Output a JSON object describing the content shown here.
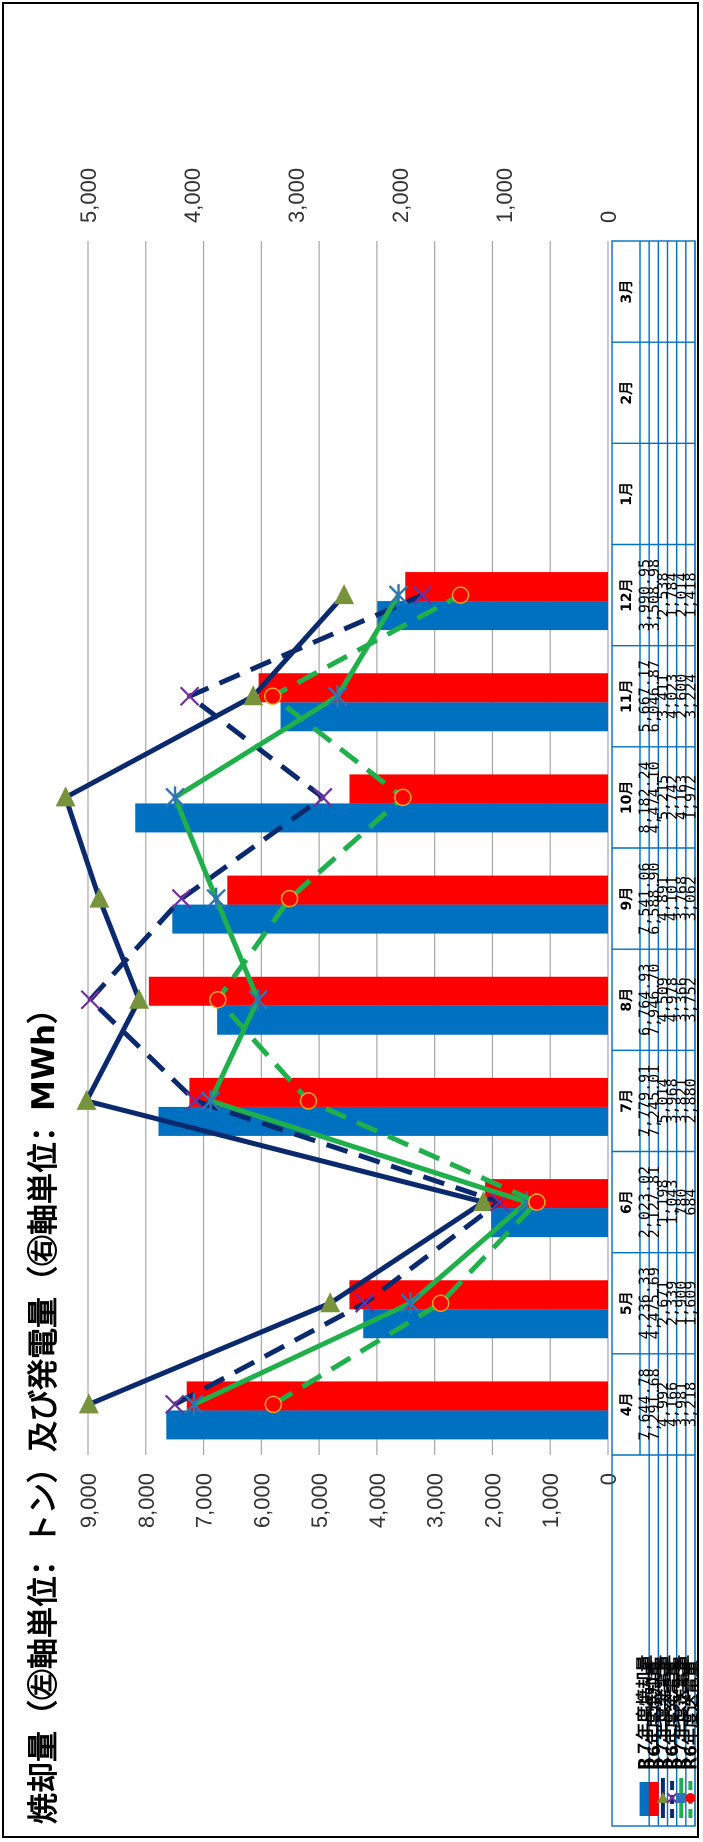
{
  "chart_data": {
    "type": "bar",
    "title": "焼却量（㊧軸単位：トン）及び発電量（㊨軸単位：MWh）",
    "categories": [
      "4月",
      "5月",
      "6月",
      "7月",
      "8月",
      "9月",
      "10月",
      "11月",
      "12月",
      "1月",
      "2月",
      "3月"
    ],
    "y_left": {
      "min": 0,
      "max": 9000,
      "ticks": [
        "0",
        "1,000",
        "2,000",
        "3,000",
        "4,000",
        "5,000",
        "6,000",
        "7,000",
        "8,000",
        "9,000"
      ]
    },
    "y_right": {
      "min": 0,
      "max": 5000,
      "ticks": [
        "0",
        "1,000",
        "2,000",
        "3,000",
        "4,000",
        "5,000"
      ]
    },
    "grid": true,
    "series": [
      {
        "name": "R７年度焼却量",
        "kind": "bar",
        "axis": "left",
        "color": "#0070C0",
        "values": [
          7644.78,
          4236.33,
          2023.02,
          7779.91,
          6764.93,
          7541.06,
          8182.24,
          5667.17,
          3990.95,
          null,
          null,
          null
        ],
        "labels": [
          "7,644.78",
          "4,236.33",
          "2,023.02",
          "7,779.91",
          "6,764.93",
          "7,541.06",
          "8,182.24",
          "5,667.17",
          "3,990.95",
          "",
          "",
          ""
        ]
      },
      {
        "name": "R6年度焼却量",
        "kind": "bar",
        "axis": "left",
        "color": "#FF0000",
        "values": [
          7291.68,
          4475.69,
          2127.81,
          7245.01,
          7946.7,
          6588.9,
          4474.1,
          6046.87,
          3508.98,
          null,
          null,
          null
        ],
        "labels": [
          "7,291.68",
          "4,475.69",
          "2,127.81",
          "7,245.01",
          "7,946.70",
          "6,588.90",
          "4,474.10",
          "6,046.87",
          "3,508.98",
          "",
          "",
          ""
        ]
      },
      {
        "name": "R７年度発電量",
        "kind": "line",
        "axis": "right",
        "color": "#0B2A6E",
        "dash": "solid",
        "marker": "triangle",
        "marker_color": "#77933C",
        "values": [
          4992,
          2671,
          1198,
          5014,
          4509,
          4891,
          5215,
          3411,
          2538,
          null,
          null,
          null
        ],
        "labels": [
          "4,992",
          "2,671",
          "1,198",
          "5,014",
          "4,509",
          "4,891",
          "5,215",
          "3,411",
          "2,538",
          "",
          "",
          ""
        ]
      },
      {
        "name": "R6年度発電量",
        "kind": "line",
        "axis": "right",
        "color": "#0B2A6E",
        "dash": "dashed",
        "marker": "x",
        "marker_color": "#7030A0",
        "values": [
          4166,
          2339,
          1043,
          3968,
          4978,
          4101,
          2742,
          4023,
          1784,
          null,
          null,
          null
        ],
        "labels": [
          "4,166",
          "2,339",
          "1,043",
          "3,968",
          "4,978",
          "4,101",
          "2,742",
          "4,023",
          "1,784",
          "",
          "",
          ""
        ]
      },
      {
        "name": "R７年度送電量",
        "kind": "line",
        "axis": "right",
        "color": "#1FAF4B",
        "dash": "solid",
        "marker": "star",
        "marker_color": "#2E75B6",
        "values": [
          3981,
          1900,
          780,
          3821,
          3366,
          3768,
          4163,
          2600,
          2014,
          null,
          null,
          null
        ],
        "labels": [
          "3,981",
          "1,900",
          "780",
          "3,821",
          "3,366",
          "3,768",
          "4,163",
          "2,600",
          "2,014",
          "",
          "",
          ""
        ]
      },
      {
        "name": "R6年度送電量",
        "kind": "line",
        "axis": "right",
        "color": "#1FAF4B",
        "dash": "dashed",
        "marker": "circle",
        "marker_color": "#FF0000",
        "values": [
          3218,
          1609,
          684,
          2880,
          3752,
          3062,
          1972,
          3224,
          1418,
          null,
          null,
          null
        ],
        "labels": [
          "3,218",
          "1,609",
          "684",
          "2,880",
          "3,752",
          "3,062",
          "1,972",
          "3,224",
          "1,418",
          "",
          "",
          ""
        ]
      }
    ]
  }
}
